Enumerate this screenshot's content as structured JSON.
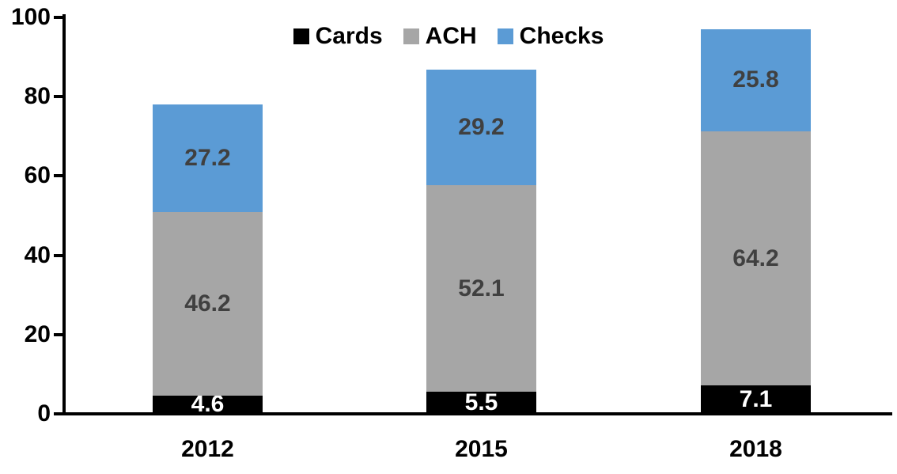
{
  "chart_data": {
    "type": "bar",
    "stacked": true,
    "title": "",
    "xlabel": "",
    "ylabel": "",
    "categories": [
      "2012",
      "2015",
      "2018"
    ],
    "series": [
      {
        "name": "Cards",
        "color": "#000000",
        "label_color": "#ffffff",
        "values": [
          4.6,
          5.5,
          7.1
        ]
      },
      {
        "name": "ACH",
        "color": "#a6a6a6",
        "label_color": "#404040",
        "values": [
          46.2,
          52.1,
          64.2
        ]
      },
      {
        "name": "Checks",
        "color": "#5b9bd5",
        "label_color": "#404040",
        "values": [
          27.2,
          29.2,
          25.8
        ]
      }
    ],
    "ylim": [
      0,
      100
    ],
    "yticks": [
      0,
      20,
      40,
      60,
      80,
      100
    ],
    "grid": false,
    "legend": {
      "position": "top",
      "entries": [
        "Cards",
        "ACH",
        "Checks"
      ]
    },
    "axis_color": "#000000",
    "background_color": "#ffffff"
  }
}
